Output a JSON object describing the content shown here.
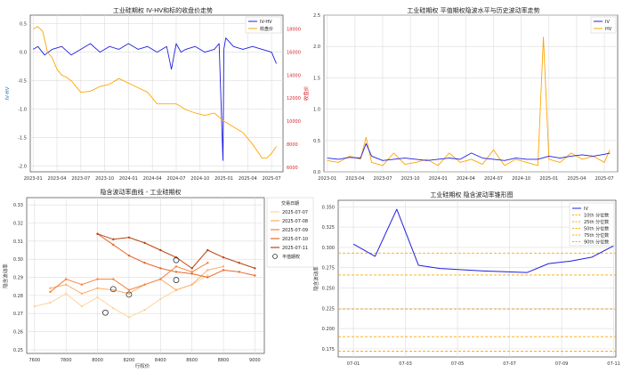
{
  "chart_data": [
    {
      "type": "line",
      "title": "工业硅期权 IV-HV和标的收盘价走势",
      "ylabel": "IV-HV",
      "y2label": "收盘价",
      "x_ticks": [
        "2023-01",
        "2023-04",
        "2023-07",
        "2023-10",
        "2024-01",
        "2024-04",
        "2024-07",
        "2024-10",
        "2025-01",
        "2025-04",
        "2025-07"
      ],
      "ylim": [
        -2.1,
        0.65
      ],
      "y_ticks": [
        "0.5",
        "0.0",
        "-0.5",
        "-1.0",
        "-1.5",
        "-2.0"
      ],
      "y_tick_values": [
        0.5,
        0.0,
        -0.5,
        -1.0,
        -1.5,
        -2.0
      ],
      "y2lim": [
        5600,
        19200
      ],
      "y2_ticks": [
        "18000",
        "16000",
        "14000",
        "12000",
        "10000",
        "8000",
        "6000"
      ],
      "y2_tick_values": [
        18000,
        16000,
        14000,
        12000,
        10000,
        8000,
        6000
      ],
      "legend": {
        "position": "upper right",
        "entries": [
          "IV-HV",
          "收盘价"
        ]
      },
      "colors": {
        "IV-HV": "#1f1fe0",
        "收盘价": "#ffa500"
      },
      "series": [
        {
          "name": "IV-HV",
          "axis": "left",
          "x": [
            2023.0,
            2023.05,
            2023.12,
            2023.2,
            2023.3,
            2023.4,
            2023.5,
            2023.6,
            2023.7,
            2023.8,
            2023.9,
            2024.0,
            2024.1,
            2024.2,
            2024.3,
            2024.4,
            2024.45,
            2024.5,
            2024.55,
            2024.6,
            2024.7,
            2024.8,
            2024.9,
            2024.95,
            2024.99,
            2025.0,
            2025.02,
            2025.1,
            2025.2,
            2025.3,
            2025.4,
            2025.5,
            2025.55
          ],
          "values": [
            0.05,
            0.1,
            -0.05,
            0.05,
            0.1,
            -0.05,
            0.05,
            0.15,
            0.0,
            0.1,
            0.05,
            0.15,
            0.05,
            0.1,
            0.0,
            0.1,
            -0.3,
            0.15,
            0.0,
            0.05,
            0.1,
            0.0,
            0.05,
            0.15,
            -1.9,
            0.05,
            0.25,
            0.1,
            0.05,
            0.1,
            0.05,
            0.0,
            -0.2
          ]
        },
        {
          "name": "收盘价",
          "axis": "right",
          "x": [
            2023.0,
            2023.05,
            2023.1,
            2023.15,
            2023.2,
            2023.25,
            2023.3,
            2023.35,
            2023.4,
            2023.5,
            2023.6,
            2023.7,
            2023.8,
            2023.9,
            2024.0,
            2024.1,
            2024.2,
            2024.3,
            2024.4,
            2024.5,
            2024.6,
            2024.7,
            2024.8,
            2024.9,
            2025.0,
            2025.1,
            2025.2,
            2025.3,
            2025.4,
            2025.45,
            2025.5,
            2025.55
          ],
          "values": [
            18000,
            18200,
            17800,
            16000,
            15500,
            14500,
            14000,
            13800,
            13500,
            12500,
            12600,
            13000,
            13200,
            13700,
            13300,
            12900,
            12500,
            11500,
            11500,
            11500,
            11000,
            10700,
            10500,
            10700,
            10000,
            9500,
            9000,
            8000,
            6800,
            6800,
            7200,
            7800
          ]
        }
      ]
    },
    {
      "type": "line",
      "title": "工业硅期权 平值期权隐波水平与历史波动率走势",
      "x_ticks": [
        "2023-01",
        "2023-04",
        "2023-07",
        "2023-10",
        "2024-01",
        "2024-04",
        "2024-07",
        "2024-10",
        "2025-01",
        "2025-04",
        "2025-07"
      ],
      "ylim": [
        0.0,
        2.5
      ],
      "y_ticks": [
        "2.5",
        "2.0",
        "1.5",
        "1.0",
        "0.5",
        "0.0"
      ],
      "y_tick_values": [
        2.5,
        2.0,
        1.5,
        1.0,
        0.5,
        0.0
      ],
      "legend": {
        "position": "upper right",
        "entries": [
          "IV",
          "HV"
        ]
      },
      "colors": {
        "IV": "#1f1fe0",
        "HV": "#ffa500"
      },
      "series": [
        {
          "name": "IV",
          "x": [
            2023.0,
            2023.1,
            2023.2,
            2023.3,
            2023.35,
            2023.4,
            2023.5,
            2023.6,
            2023.7,
            2023.8,
            2023.9,
            2024.0,
            2024.1,
            2024.2,
            2024.3,
            2024.4,
            2024.5,
            2024.6,
            2024.7,
            2024.8,
            2024.9,
            2025.0,
            2025.1,
            2025.2,
            2025.3,
            2025.4,
            2025.5,
            2025.55
          ],
          "values": [
            0.22,
            0.2,
            0.23,
            0.22,
            0.45,
            0.25,
            0.18,
            0.2,
            0.22,
            0.2,
            0.18,
            0.2,
            0.22,
            0.2,
            0.3,
            0.22,
            0.2,
            0.18,
            0.22,
            0.2,
            0.2,
            0.25,
            0.22,
            0.25,
            0.27,
            0.25,
            0.28,
            0.3
          ]
        },
        {
          "name": "HV",
          "x": [
            2023.0,
            2023.1,
            2023.2,
            2023.3,
            2023.35,
            2023.4,
            2023.5,
            2023.6,
            2023.7,
            2023.8,
            2023.9,
            2024.0,
            2024.1,
            2024.2,
            2024.3,
            2024.4,
            2024.5,
            2024.6,
            2024.7,
            2024.8,
            2024.9,
            2024.95,
            2025.0,
            2025.1,
            2025.2,
            2025.3,
            2025.4,
            2025.5,
            2025.55
          ],
          "values": [
            0.18,
            0.15,
            0.25,
            0.2,
            0.55,
            0.15,
            0.1,
            0.3,
            0.12,
            0.15,
            0.2,
            0.1,
            0.3,
            0.15,
            0.2,
            0.12,
            0.35,
            0.1,
            0.2,
            0.15,
            0.1,
            2.15,
            0.2,
            0.15,
            0.3,
            0.2,
            0.25,
            0.15,
            0.35
          ]
        }
      ]
    },
    {
      "type": "scatter",
      "title": "隐含波动率曲线 - 工业硅期权",
      "xlabel": "行权价",
      "ylabel": "隐含波动率",
      "x_ticks": [
        "7600",
        "7800",
        "8000",
        "8200",
        "8400",
        "8600",
        "8800",
        "9000"
      ],
      "x_tick_values": [
        7600,
        7800,
        8000,
        8200,
        8400,
        8600,
        8800,
        9000
      ],
      "xlim": [
        7550,
        9060
      ],
      "ylim": [
        0.248,
        0.334
      ],
      "y_ticks": [
        "0.33",
        "0.32",
        "0.31",
        "0.30",
        "0.29",
        "0.28",
        "0.27",
        "0.26",
        "0.25"
      ],
      "y_tick_values": [
        0.33,
        0.32,
        0.31,
        0.3,
        0.29,
        0.28,
        0.27,
        0.26,
        0.25
      ],
      "legend": {
        "title": "交易日期",
        "position": "upper right",
        "entries": [
          "2025-07-07",
          "2025-07-08",
          "2025-07-09",
          "2025-07-10",
          "2025-07-11",
          "平值期权"
        ]
      },
      "series": [
        {
          "name": "2025-07-07",
          "color": "#fdd49e",
          "x": [
            7600,
            7700,
            7800,
            7900,
            8000,
            8100,
            8200,
            8300,
            8400,
            8500,
            8600,
            8700
          ],
          "values": [
            0.274,
            0.276,
            0.281,
            0.274,
            0.279,
            0.273,
            0.268,
            0.272,
            0.278,
            0.283,
            0.286,
            0.291
          ]
        },
        {
          "name": "2025-07-08",
          "color": "#fdae6b",
          "x": [
            7700,
            7800,
            7900,
            8000,
            8100,
            8200,
            8300,
            8400,
            8500,
            8600,
            8700,
            8800
          ],
          "values": [
            0.284,
            0.286,
            0.281,
            0.284,
            0.283,
            0.281,
            0.286,
            0.289,
            0.283,
            0.286,
            0.294,
            0.296
          ]
        },
        {
          "name": "2025-07-09",
          "color": "#f5813a",
          "x": [
            7700,
            7800,
            7900,
            8000,
            8100,
            8200,
            8300,
            8400,
            8500,
            8600,
            8700
          ],
          "values": [
            0.282,
            0.289,
            0.286,
            0.289,
            0.289,
            0.283,
            0.286,
            0.289,
            0.296,
            0.293,
            0.298
          ]
        },
        {
          "name": "2025-07-10",
          "color": "#e8672a",
          "x": [
            8000,
            8100,
            8200,
            8300,
            8400,
            8500,
            8600,
            8700,
            8800,
            8900,
            9000
          ],
          "values": [
            0.314,
            0.308,
            0.302,
            0.298,
            0.295,
            0.293,
            0.292,
            0.29,
            0.294,
            0.293,
            0.291
          ]
        },
        {
          "name": "2025-07-11",
          "color": "#b84512",
          "x": [
            8000,
            8100,
            8200,
            8300,
            8400,
            8500,
            8600,
            8700,
            8800,
            8900,
            9000
          ],
          "values": [
            0.314,
            0.311,
            0.312,
            0.309,
            0.305,
            0.301,
            0.295,
            0.305,
            0.301,
            0.298,
            0.295
          ]
        }
      ],
      "atm_points": [
        {
          "x": 8050,
          "y": 0.2705
        },
        {
          "x": 8100,
          "y": 0.2835
        },
        {
          "x": 8200,
          "y": 0.2805
        },
        {
          "x": 8500,
          "y": 0.2885
        },
        {
          "x": 8500,
          "y": 0.2995
        }
      ]
    },
    {
      "type": "line",
      "title": "工业硅期权 隐含波动率锥形图",
      "ylabel": "隐含波动率",
      "x_ticks": [
        "07-01",
        "07-03",
        "07-05",
        "07-07",
        "07-09",
        "07-11"
      ],
      "ylim": [
        0.165,
        0.358
      ],
      "y_ticks": [
        "0.350",
        "0.325",
        "0.300",
        "0.275",
        "0.250",
        "0.225",
        "0.200",
        "0.175"
      ],
      "y_tick_values": [
        0.35,
        0.325,
        0.3,
        0.275,
        0.25,
        0.225,
        0.2,
        0.175
      ],
      "legend": {
        "position": "upper right",
        "entries": [
          "IV",
          "10th 分位数",
          "25th 分位数",
          "50th 分位数",
          "75th 分位数",
          "90th 分位数"
        ]
      },
      "series": [
        {
          "name": "IV",
          "color": "#1f1fe0",
          "x": [
            0.0,
            0.5,
            1.0,
            1.5,
            2.0,
            3.0,
            4.0,
            4.5,
            5.0,
            5.5,
            6.0
          ],
          "values": [
            0.304,
            0.289,
            0.347,
            0.278,
            0.274,
            0.271,
            0.269,
            0.28,
            0.283,
            0.288,
            0.302
          ]
        }
      ],
      "quantiles": [
        {
          "name": "10th 分位数",
          "value": 0.172,
          "color": "#ffa500"
        },
        {
          "name": "25th 分位数",
          "value": 0.19,
          "color": "#ffa500"
        },
        {
          "name": "50th 分位数",
          "value": 0.224,
          "color": "#ffa500"
        },
        {
          "name": "75th 分位数",
          "value": 0.266,
          "color": "#ffa500"
        },
        {
          "name": "90th 分位数",
          "value": 0.293,
          "color": "#ffa500"
        }
      ]
    }
  ]
}
